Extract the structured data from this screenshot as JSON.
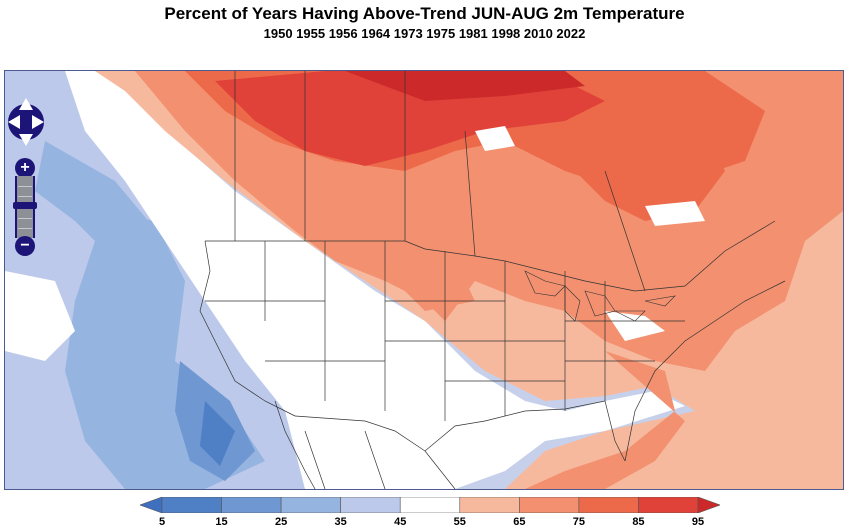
{
  "title": "Percent of Years Having Above-Trend JUN-AUG 2m Temperature",
  "subtitle": "1950 1955 1956 1964 1973 1975 1981 1998 2010 2022",
  "colorbar": {
    "bins": [
      "#4f7fc5",
      "#6f98d2",
      "#96b4e0",
      "#bcc9ea",
      "#ffffff",
      "#f7b99d",
      "#f2906f",
      "#ec6a4a",
      "#e0423a"
    ],
    "under_color": "#3f6fbf",
    "over_color": "#cc2a2a",
    "labels": [
      "5",
      "15",
      "25",
      "35",
      "45",
      "55",
      "65",
      "75",
      "85",
      "95"
    ]
  },
  "controls": {
    "zoom_in_label": "+",
    "zoom_out_label": "−"
  }
}
